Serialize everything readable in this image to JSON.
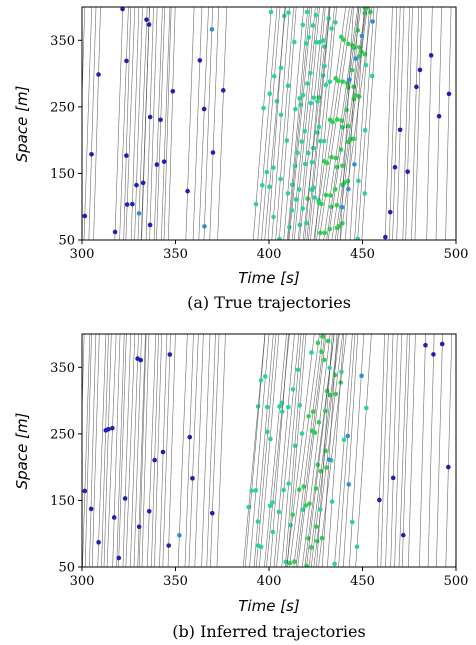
{
  "colors": {
    "trajectory_line": "#3c3c3c",
    "speed_slow": "#1f1fb5",
    "speed_mid": "#2f8ed6",
    "speed_fast": "#2fd0a0",
    "speed_very_fast": "#33cc55"
  },
  "chart_data": [
    {
      "type": "scatter",
      "caption": "(a) True trajectories",
      "xlabel": "Time [s]",
      "ylabel": "Space [m]",
      "xlim": [
        300,
        500
      ],
      "ylim": [
        50,
        400
      ],
      "xticks": [
        300,
        350,
        400,
        450,
        500
      ],
      "yticks": [
        50,
        150,
        250,
        350
      ],
      "grid": false,
      "legend": "none",
      "series": [
        {
          "clusters": [
            {
              "t0_start": 298,
              "t0_end": 306,
              "count": 4,
              "speed": 95,
              "interval": 4
            },
            {
              "t0_start": 318,
              "t0_end": 332,
              "count": 8,
              "speed": 80,
              "interval": 4
            },
            {
              "t0_start": 332,
              "t0_end": 346,
              "count": 8,
              "speed": 85,
              "interval": 4
            },
            {
              "t0_start": 356,
              "t0_end": 372,
              "count": 6,
              "speed": 75,
              "interval": 4
            },
            {
              "t0_start": 392,
              "t0_end": 410,
              "count": 10,
              "speed": 35,
              "interval": 4
            },
            {
              "t0_start": 410,
              "t0_end": 424,
              "count": 12,
              "speed": 28,
              "interval": 3
            },
            {
              "t0_start": 424,
              "t0_end": 438,
              "count": 10,
              "speed": 20,
              "interval": 3
            },
            {
              "t0_start": 438,
              "t0_end": 450,
              "count": 6,
              "speed": 45,
              "interval": 4
            },
            {
              "t0_start": 462,
              "t0_end": 478,
              "count": 8,
              "speed": 90,
              "interval": 4
            },
            {
              "t0_start": 484,
              "t0_end": 500,
              "count": 4,
              "speed": 110,
              "interval": 4
            }
          ]
        }
      ]
    },
    {
      "type": "scatter",
      "caption": "(b) Inferred trajectories",
      "xlabel": "Time [s]",
      "ylabel": "Space [m]",
      "xlim": [
        300,
        500
      ],
      "ylim": [
        50,
        400
      ],
      "xticks": [
        300,
        350,
        400,
        450,
        500
      ],
      "yticks": [
        50,
        150,
        250,
        350
      ],
      "grid": false,
      "legend": "none",
      "series": [
        {
          "clusters": [
            {
              "t0_start": 298,
              "t0_end": 306,
              "count": 5,
              "speed": 95,
              "interval": 6
            },
            {
              "t0_start": 308,
              "t0_end": 330,
              "count": 12,
              "speed": 82,
              "interval": 6
            },
            {
              "t0_start": 330,
              "t0_end": 346,
              "count": 8,
              "speed": 85,
              "interval": 6
            },
            {
              "t0_start": 352,
              "t0_end": 372,
              "count": 8,
              "speed": 75,
              "interval": 6
            },
            {
              "t0_start": 386,
              "t0_end": 410,
              "count": 14,
              "speed": 33,
              "interval": 5
            },
            {
              "t0_start": 410,
              "t0_end": 426,
              "count": 12,
              "speed": 24,
              "interval": 5
            },
            {
              "t0_start": 426,
              "t0_end": 446,
              "count": 8,
              "speed": 40,
              "interval": 5
            },
            {
              "t0_start": 458,
              "t0_end": 474,
              "count": 8,
              "speed": 90,
              "interval": 6
            },
            {
              "t0_start": 480,
              "t0_end": 500,
              "count": 5,
              "speed": 110,
              "interval": 6
            }
          ]
        }
      ]
    }
  ]
}
